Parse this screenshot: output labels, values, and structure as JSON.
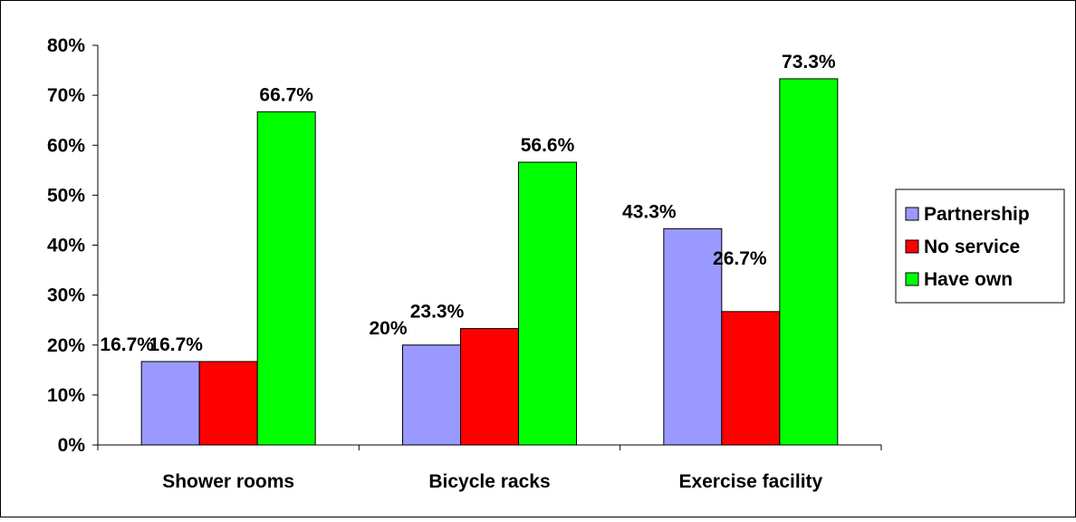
{
  "chart_data": {
    "type": "bar",
    "title": "",
    "xlabel": "",
    "ylabel": "",
    "categories": [
      "Shower rooms",
      "Bicycle racks",
      "Exercise facility"
    ],
    "series": [
      {
        "name": "Partnership",
        "values": [
          16.7,
          20,
          43.3
        ],
        "labels": [
          "16.7%",
          "20%",
          "43.3%"
        ],
        "color": "#9999FF"
      },
      {
        "name": "No service",
        "values": [
          16.7,
          23.3,
          26.7
        ],
        "labels": [
          "16.7%",
          "23.3%",
          "26.7%"
        ],
        "color": "#FF0000"
      },
      {
        "name": "Have own",
        "values": [
          66.7,
          56.6,
          73.3
        ],
        "labels": [
          "66.7%",
          "56.6%",
          "73.3%"
        ],
        "color": "#00FF00"
      }
    ],
    "ylim": [
      0,
      80
    ],
    "yticks": [
      "0%",
      "10%",
      "20%",
      "30%",
      "40%",
      "50%",
      "60%",
      "70%",
      "80%"
    ],
    "grid": false,
    "legend": "right"
  }
}
